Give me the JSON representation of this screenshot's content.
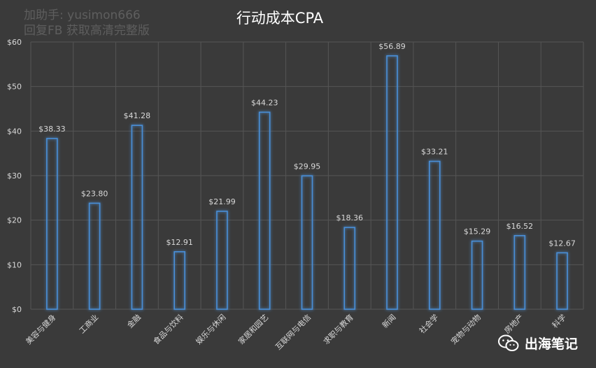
{
  "watermark": {
    "line1": "加助手: yusimon666",
    "line2": "回复FB 获取高清完整版"
  },
  "brand": {
    "label": "出海笔记",
    "icon": "wechat-icon"
  },
  "colors": {
    "background": "#3a3a3a",
    "bar_stroke": "#4a8fd8",
    "bar_glow": "#3a7fd0",
    "grid": "#555555",
    "text": "#d9d9d9"
  },
  "chart_data": {
    "type": "bar",
    "title": "行动成本CPA",
    "xlabel": "",
    "ylabel": "",
    "ylim": [
      0,
      60
    ],
    "yticks": [
      "$0",
      "$10",
      "$20",
      "$30",
      "$40",
      "$50",
      "$60"
    ],
    "ytick_values": [
      0,
      10,
      20,
      30,
      40,
      50,
      60
    ],
    "grid": true,
    "categories": [
      "美容与健身",
      "工商业",
      "金融",
      "食品与饮料",
      "娱乐与休闲",
      "家居和园艺",
      "互联网与电信",
      "求职与教育",
      "新闻",
      "社会学",
      "宠物与动物",
      "房地产",
      "科学"
    ],
    "values": [
      38.33,
      23.8,
      41.28,
      12.91,
      21.99,
      44.23,
      29.95,
      18.36,
      56.89,
      33.21,
      15.29,
      16.52,
      12.67
    ],
    "data_labels": [
      "$38.33",
      "$23.80",
      "$41.28",
      "$12.91",
      "$21.99",
      "$44.23",
      "$29.95",
      "$18.36",
      "$56.89",
      "$33.21",
      "$15.29",
      "$16.52",
      "$12.67"
    ]
  }
}
